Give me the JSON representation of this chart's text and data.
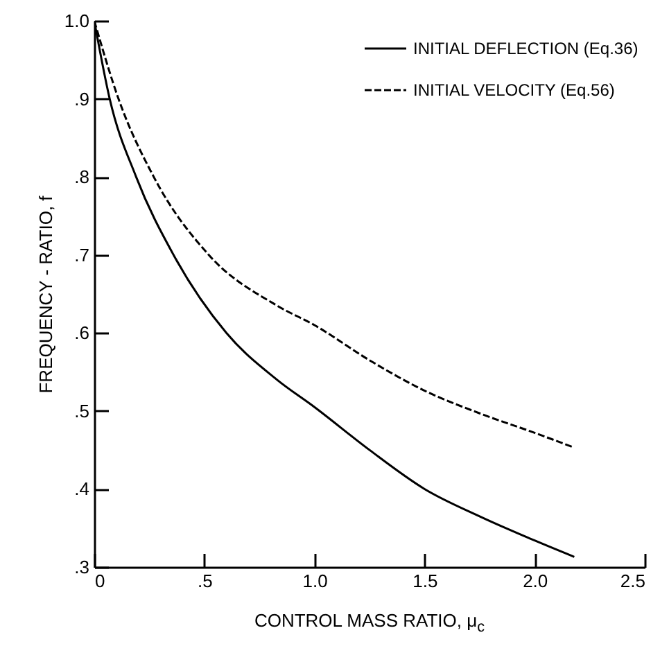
{
  "chart_data": {
    "type": "line",
    "xlabel": "CONTROL MASS RATIO, μ$_{c}$",
    "ylabel": "FREQUENCY - RATIO, f",
    "xlim": [
      0,
      2.5
    ],
    "ylim": [
      0.3,
      1.0
    ],
    "xticks": [
      0,
      {
        "value": 0.5,
        "label": ".5"
      },
      {
        "value": 1,
        "label": "1.0"
      },
      {
        "value": 1.5,
        "label": "1.5"
      },
      {
        "value": 2,
        "label": "2.0"
      },
      {
        "value": 2.5,
        "label": "2.5"
      }
    ],
    "yticks": [
      {
        "value": 0.3,
        "label": ".3"
      },
      {
        "value": 0.4,
        "label": ".4"
      },
      {
        "value": 0.5,
        "label": ".5"
      },
      {
        "value": 0.6,
        "label": ".6"
      },
      {
        "value": 0.7,
        "label": ".7"
      },
      {
        "value": 0.8,
        "label": ".8"
      },
      {
        "value": 0.9,
        "label": ".9"
      },
      {
        "value": 1,
        "label": "1.0"
      }
    ],
    "grid": false,
    "legend": "top right",
    "marker": "none",
    "series": [
      {
        "name": "INITIAL DEFLECTION (Eq.36)",
        "color": "#000000",
        "line_style": "solid",
        "x": [
          0,
          0.07,
          0.19,
          0.36,
          0.6,
          0.83,
          1.0,
          1.25,
          1.5,
          1.75,
          2.0,
          2.18
        ],
        "values": [
          1.0,
          0.9,
          0.8,
          0.7,
          0.6,
          0.54,
          0.505,
          0.45,
          0.4,
          0.365,
          0.334,
          0.313
        ]
      },
      {
        "name": "INITIAL VELOCITY (Eq.56)",
        "color": "#000000",
        "line_style": "dashed",
        "x": [
          0,
          0.11,
          0.27,
          0.52,
          0.83,
          1.0,
          1.25,
          1.5,
          1.75,
          2.0,
          2.18
        ],
        "values": [
          1.0,
          0.9,
          0.8,
          0.7,
          0.635,
          0.61,
          0.565,
          0.526,
          0.497,
          0.472,
          0.453
        ]
      }
    ]
  }
}
